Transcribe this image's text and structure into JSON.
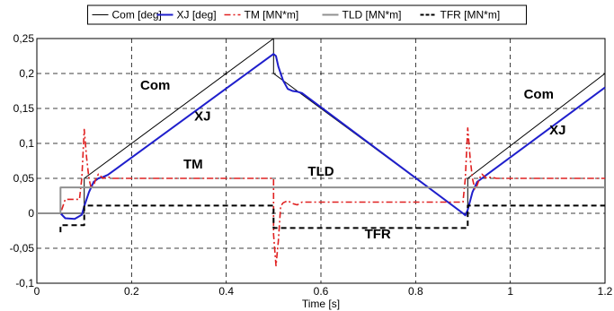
{
  "chart_data": {
    "type": "line",
    "xlabel": "Time [s]",
    "ylabel": "",
    "xlim": [
      0,
      1.2
    ],
    "ylim": [
      -0.1,
      0.25
    ],
    "grid": true,
    "legend_position": "top",
    "x_ticks": [
      {
        "v": 0,
        "label": "0"
      },
      {
        "v": 0.2,
        "label": "0.2"
      },
      {
        "v": 0.4,
        "label": "0.4"
      },
      {
        "v": 0.6,
        "label": "0.6"
      },
      {
        "v": 0.8,
        "label": "0.8"
      },
      {
        "v": 1,
        "label": "1"
      },
      {
        "v": 1.2,
        "label": "1.2"
      }
    ],
    "y_ticks": [
      {
        "v": -0.1,
        "label": "-0,1"
      },
      {
        "v": -0.05,
        "label": "-0,05"
      },
      {
        "v": 0,
        "label": "0"
      },
      {
        "v": 0.05,
        "label": "0,05"
      },
      {
        "v": 0.1,
        "label": "0,1"
      },
      {
        "v": 0.15,
        "label": "0,15"
      },
      {
        "v": 0.2,
        "label": "0,2"
      },
      {
        "v": 0.25,
        "label": "0,25"
      }
    ],
    "series": [
      {
        "name": "Com [deg]",
        "color": "#000000",
        "dash": "",
        "width": 1,
        "points": [
          [
            0,
            0
          ],
          [
            0.1,
            0
          ],
          [
            0.1,
            0.05
          ],
          [
            0.5,
            0.25
          ],
          [
            0.5,
            0.2
          ],
          [
            0.9,
            0
          ],
          [
            0.91,
            0
          ],
          [
            0.91,
            0.05
          ],
          [
            1.2,
            0.2
          ]
        ]
      },
      {
        "name": "XJ [deg]",
        "color": "#1f1fcc",
        "dash": "",
        "width": 2,
        "points": [
          [
            0,
            0
          ],
          [
            0.05,
            0
          ],
          [
            0.06,
            -0.007
          ],
          [
            0.08,
            -0.008
          ],
          [
            0.095,
            -0.002
          ],
          [
            0.1,
            0.01
          ],
          [
            0.11,
            0.03
          ],
          [
            0.12,
            0.045
          ],
          [
            0.13,
            0.05
          ],
          [
            0.14,
            0.052
          ],
          [
            0.15,
            0.055
          ],
          [
            0.5,
            0.228
          ],
          [
            0.505,
            0.225
          ],
          [
            0.51,
            0.21
          ],
          [
            0.52,
            0.19
          ],
          [
            0.53,
            0.178
          ],
          [
            0.54,
            0.175
          ],
          [
            0.55,
            0.174
          ],
          [
            0.56,
            0.172
          ],
          [
            0.9,
            0
          ],
          [
            0.905,
            -0.003
          ],
          [
            0.91,
            0.005
          ],
          [
            0.92,
            0.03
          ],
          [
            0.93,
            0.045
          ],
          [
            0.94,
            0.05
          ],
          [
            0.95,
            0.055
          ],
          [
            1.2,
            0.18
          ]
        ]
      },
      {
        "name": "TM [MN*m]",
        "color": "#e02020",
        "dash": "7,3,2,3",
        "width": 1.6,
        "points": [
          [
            0,
            0
          ],
          [
            0.05,
            0
          ],
          [
            0.06,
            0.02
          ],
          [
            0.09,
            0.02
          ],
          [
            0.095,
            0.05
          ],
          [
            0.1,
            0.12
          ],
          [
            0.105,
            0.08
          ],
          [
            0.11,
            0.05
          ],
          [
            0.115,
            0.035
          ],
          [
            0.12,
            0.04
          ],
          [
            0.125,
            0.05
          ],
          [
            0.13,
            0.056
          ],
          [
            0.14,
            0.05
          ],
          [
            0.15,
            0.052
          ],
          [
            0.16,
            0.05
          ],
          [
            0.5,
            0.05
          ],
          [
            0.5,
            -0.03
          ],
          [
            0.505,
            -0.075
          ],
          [
            0.51,
            -0.04
          ],
          [
            0.515,
            0.01
          ],
          [
            0.52,
            0.015
          ],
          [
            0.53,
            0.018
          ],
          [
            0.54,
            0.014
          ],
          [
            0.55,
            0.012
          ],
          [
            0.56,
            0.016
          ],
          [
            0.9,
            0.016
          ],
          [
            0.905,
            0.05
          ],
          [
            0.91,
            0.122
          ],
          [
            0.915,
            0.08
          ],
          [
            0.92,
            0.05
          ],
          [
            0.925,
            0.035
          ],
          [
            0.93,
            0.04
          ],
          [
            0.935,
            0.05
          ],
          [
            0.94,
            0.056
          ],
          [
            0.95,
            0.05
          ],
          [
            0.96,
            0.052
          ],
          [
            0.97,
            0.05
          ],
          [
            1.2,
            0.05
          ]
        ]
      },
      {
        "name": "TLD [MN*m]",
        "color": "#909090",
        "dash": "",
        "width": 2,
        "points": [
          [
            0,
            0
          ],
          [
            0.05,
            0
          ],
          [
            0.05,
            0.037
          ],
          [
            1.2,
            0.037
          ]
        ]
      },
      {
        "name": "TFR [MN*m]",
        "color": "#000000",
        "dash": "6,4",
        "width": 2,
        "points": [
          [
            0.05,
            -0.027
          ],
          [
            0.05,
            -0.017
          ],
          [
            0.1,
            -0.017
          ],
          [
            0.1,
            0.011
          ],
          [
            0.5,
            0.011
          ],
          [
            0.5,
            -0.021
          ],
          [
            0.91,
            -0.021
          ],
          [
            0.91,
            0.011
          ],
          [
            1.2,
            0.011
          ]
        ]
      }
    ],
    "annotations": [
      {
        "text": "Com",
        "x": 0.25,
        "y": 0.177
      },
      {
        "text": "XJ",
        "x": 0.35,
        "y": 0.133
      },
      {
        "text": "TM",
        "x": 0.33,
        "y": 0.064
      },
      {
        "text": "TLD",
        "x": 0.6,
        "y": 0.054
      },
      {
        "text": "TFR",
        "x": 0.72,
        "y": -0.036
      },
      {
        "text": "Com",
        "x": 1.06,
        "y": 0.164
      },
      {
        "text": "XJ",
        "x": 1.1,
        "y": 0.113
      }
    ]
  }
}
